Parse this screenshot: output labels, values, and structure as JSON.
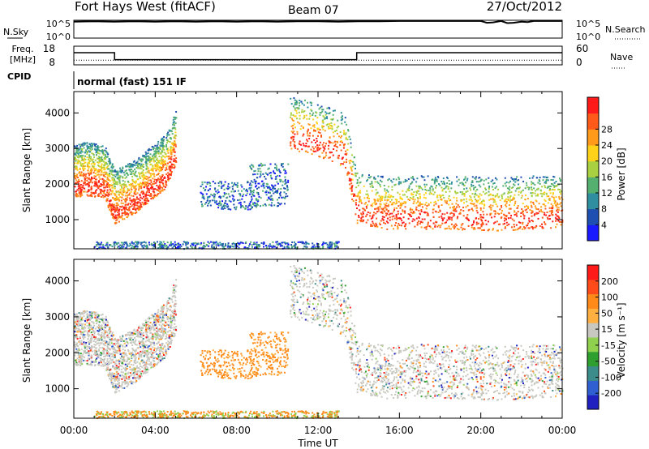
{
  "header": {
    "station": "Fort Hays West (fitACF)",
    "beam": "Beam 07",
    "date": "27/Oct/2012"
  },
  "chart_data": [
    {
      "type": "line",
      "panel": "noise",
      "left_label": "N.Sky",
      "right_label": "N.Search",
      "left_ticks": [
        "10^5",
        "10^0"
      ],
      "right_ticks": [
        "10^5",
        "10^0"
      ],
      "series": [
        {
          "name": "N.Sky",
          "x": [
            0,
            1,
            2,
            3,
            4,
            5,
            6,
            7,
            8,
            9,
            10,
            11,
            12,
            13,
            14,
            15,
            16,
            17,
            18,
            19,
            20,
            20.3,
            20.6,
            21,
            21.3,
            21.6,
            22,
            22.3,
            22.6,
            23,
            24
          ],
          "y": [
            4.6,
            4.7,
            4.6,
            4.7,
            4.6,
            4.7,
            4.6,
            4.7,
            4.6,
            4.7,
            4.6,
            4.7,
            4.7,
            4.6,
            4.7,
            4.7,
            4.8,
            4.8,
            4.8,
            4.8,
            4.8,
            4.3,
            4.4,
            4.8,
            4.2,
            4.3,
            4.6,
            4.5,
            4.8,
            4.8,
            4.8
          ]
        }
      ],
      "xlim": [
        0,
        24
      ]
    },
    {
      "type": "line",
      "panel": "frequency",
      "left_label": "Freq.\n[MHz]",
      "right_label": "Nave",
      "left_ticks": [
        "18",
        "8"
      ],
      "right_ticks": [
        "60",
        "0"
      ],
      "series": [
        {
          "name": "Freq.",
          "x": [
            0,
            2.0,
            2.0,
            13.9,
            13.9,
            24
          ],
          "y": [
            14.5,
            14.5,
            10.8,
            10.8,
            14.5,
            14.5
          ]
        },
        {
          "name": "Nave",
          "x": [
            0,
            24
          ],
          "y": [
            15,
            15
          ]
        }
      ],
      "ylim": [
        8,
        18
      ],
      "y2lim": [
        0,
        60
      ],
      "xlim": [
        0,
        24
      ]
    },
    {
      "type": "heatmap",
      "panel": "cpid",
      "left_label": "CPID",
      "text": "normal (fast) 151 IF"
    },
    {
      "type": "heatmap",
      "panel": "power",
      "ylabel": "Slant Range [km]",
      "yticks": [
        "1000",
        "2000",
        "3000",
        "4000"
      ],
      "ylim": [
        180,
        4600
      ],
      "xlim": [
        0,
        24
      ],
      "colorbar": {
        "label": "Power [dB]",
        "ticks": [
          "4",
          "8",
          "12",
          "16",
          "20",
          "24",
          "28"
        ],
        "colors": [
          "#1a1aff",
          "#1f4fb0",
          "#2f8fa0",
          "#55b070",
          "#a8d040",
          "#ffd21a",
          "#ff9a1a",
          "#ff5a1a",
          "#ff1a1a"
        ]
      },
      "echo_bands": [
        {
          "x": [
            0,
            0.5,
            1.5,
            2.0,
            3.0,
            4.5,
            5.0
          ],
          "y": [
            1900,
            2000,
            1900,
            1200,
            1500,
            2200,
            2900
          ]
        },
        {
          "x": [
            10.6,
            12.0,
            13.3,
            13.9,
            15.0,
            18.0,
            21.0,
            24.0
          ],
          "y": [
            3300,
            3100,
            2800,
            1200,
            1050,
            1050,
            1000,
            1100
          ]
        }
      ]
    },
    {
      "type": "heatmap",
      "panel": "velocity",
      "ylabel": "Slant Range [km]",
      "yticks": [
        "1000",
        "2000",
        "3000",
        "4000"
      ],
      "ylim": [
        180,
        4600
      ],
      "xlim": [
        0,
        24
      ],
      "xlabel": "Time UT",
      "xticks": [
        "00:00",
        "04:00",
        "08:00",
        "12:00",
        "16:00",
        "20:00",
        "00:00"
      ],
      "colorbar": {
        "label": "Velocity [m s⁻¹]",
        "ticks": [
          "200",
          "100",
          "50",
          "15",
          "-15",
          "-50",
          "-100",
          "-200"
        ],
        "colors": [
          "#2020c0",
          "#2f5fd0",
          "#3c8c8c",
          "#2fa02f",
          "#8fd04f",
          "#c8c8c0",
          "#ffb040",
          "#ff8a1a",
          "#ff4a1a",
          "#ff1a1a"
        ]
      }
    }
  ]
}
